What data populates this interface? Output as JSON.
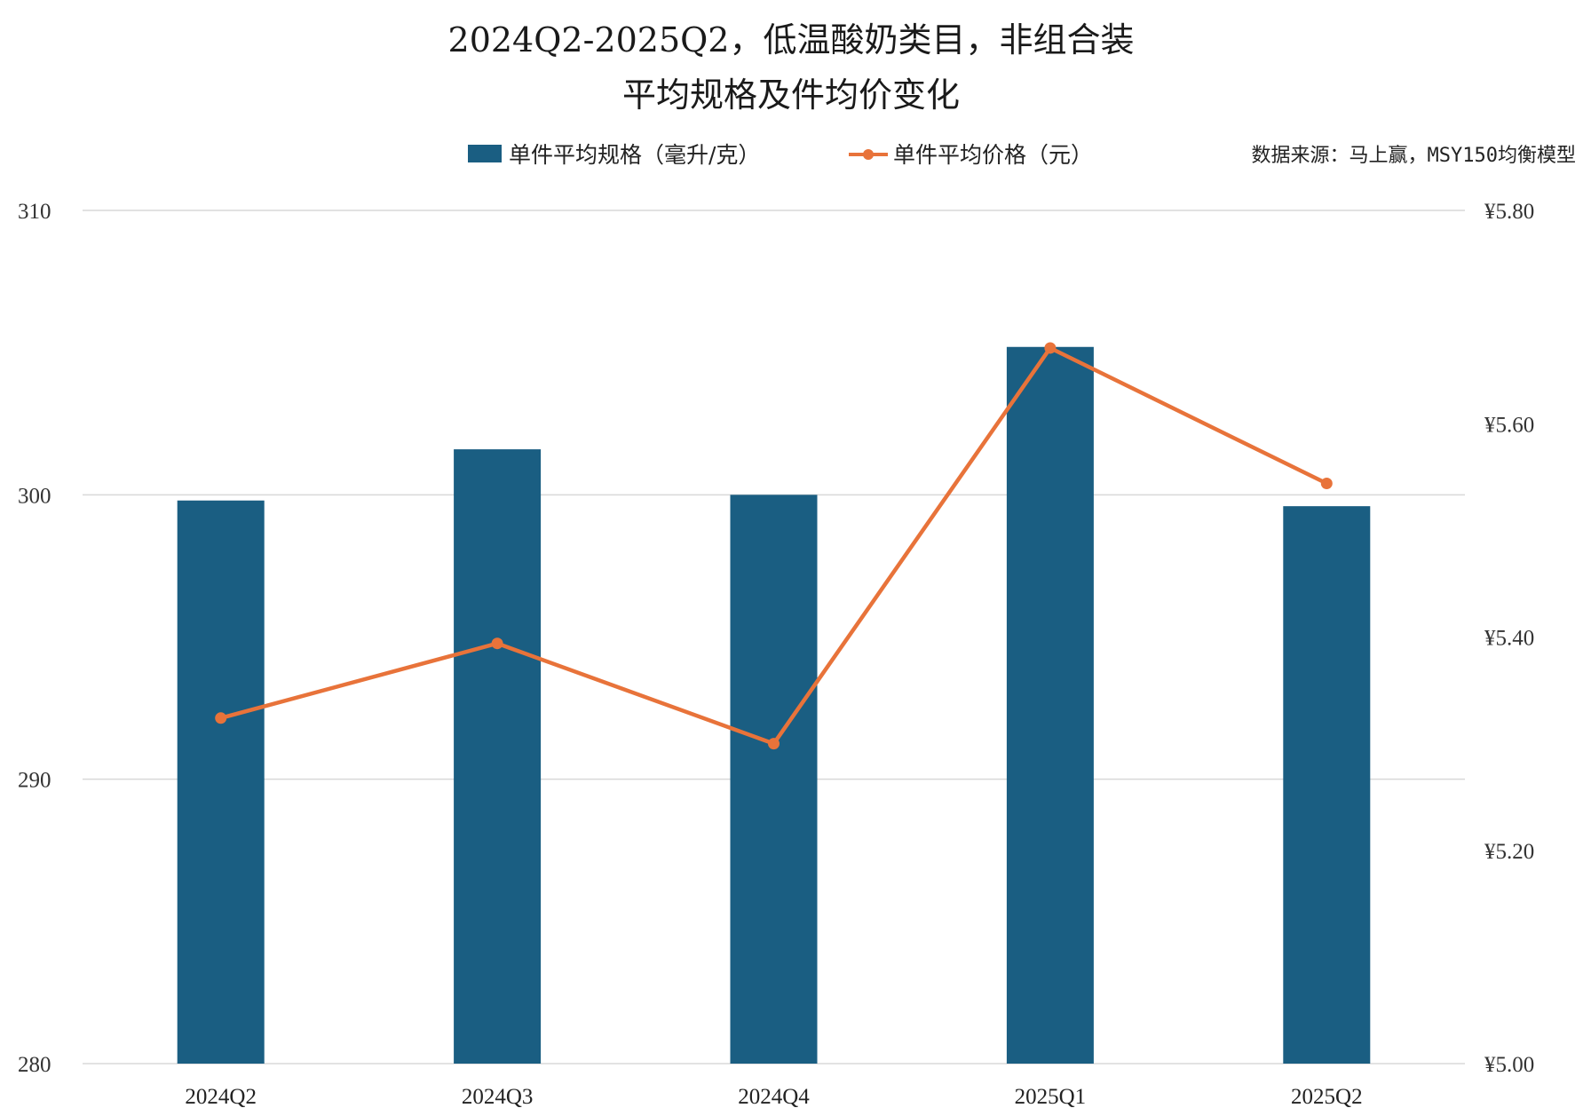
{
  "chart_data": {
    "type": "bar",
    "title_line1": "2024Q2-2025Q2，低温酸奶类目，非组合装",
    "title_line2": "平均规格及件均价变化",
    "source_note": "数据来源：马上赢，MSY150均衡模型",
    "categories": [
      "2024Q2",
      "2024Q3",
      "2024Q4",
      "2025Q1",
      "2025Q2"
    ],
    "series": [
      {
        "name": "单件平均规格（毫升/克）",
        "type": "bar",
        "axis": "left",
        "color": "#1a5e82",
        "values": [
          299.8,
          301.6,
          300.0,
          305.2,
          299.6
        ]
      },
      {
        "name": "单件平均价格（元）",
        "type": "line",
        "axis": "right",
        "color": "#e8733a",
        "values": [
          5.324,
          5.394,
          5.3,
          5.671,
          5.544
        ]
      }
    ],
    "y_left": {
      "min": 280,
      "max": 310,
      "ticks": [
        "280",
        "290",
        "300",
        "310"
      ]
    },
    "y_right": {
      "min": 5.0,
      "max": 5.8,
      "ticks": [
        "¥5.00",
        "¥5.20",
        "¥5.40",
        "¥5.60",
        "¥5.80"
      ]
    },
    "legend_position": "top-center",
    "grid": true
  }
}
